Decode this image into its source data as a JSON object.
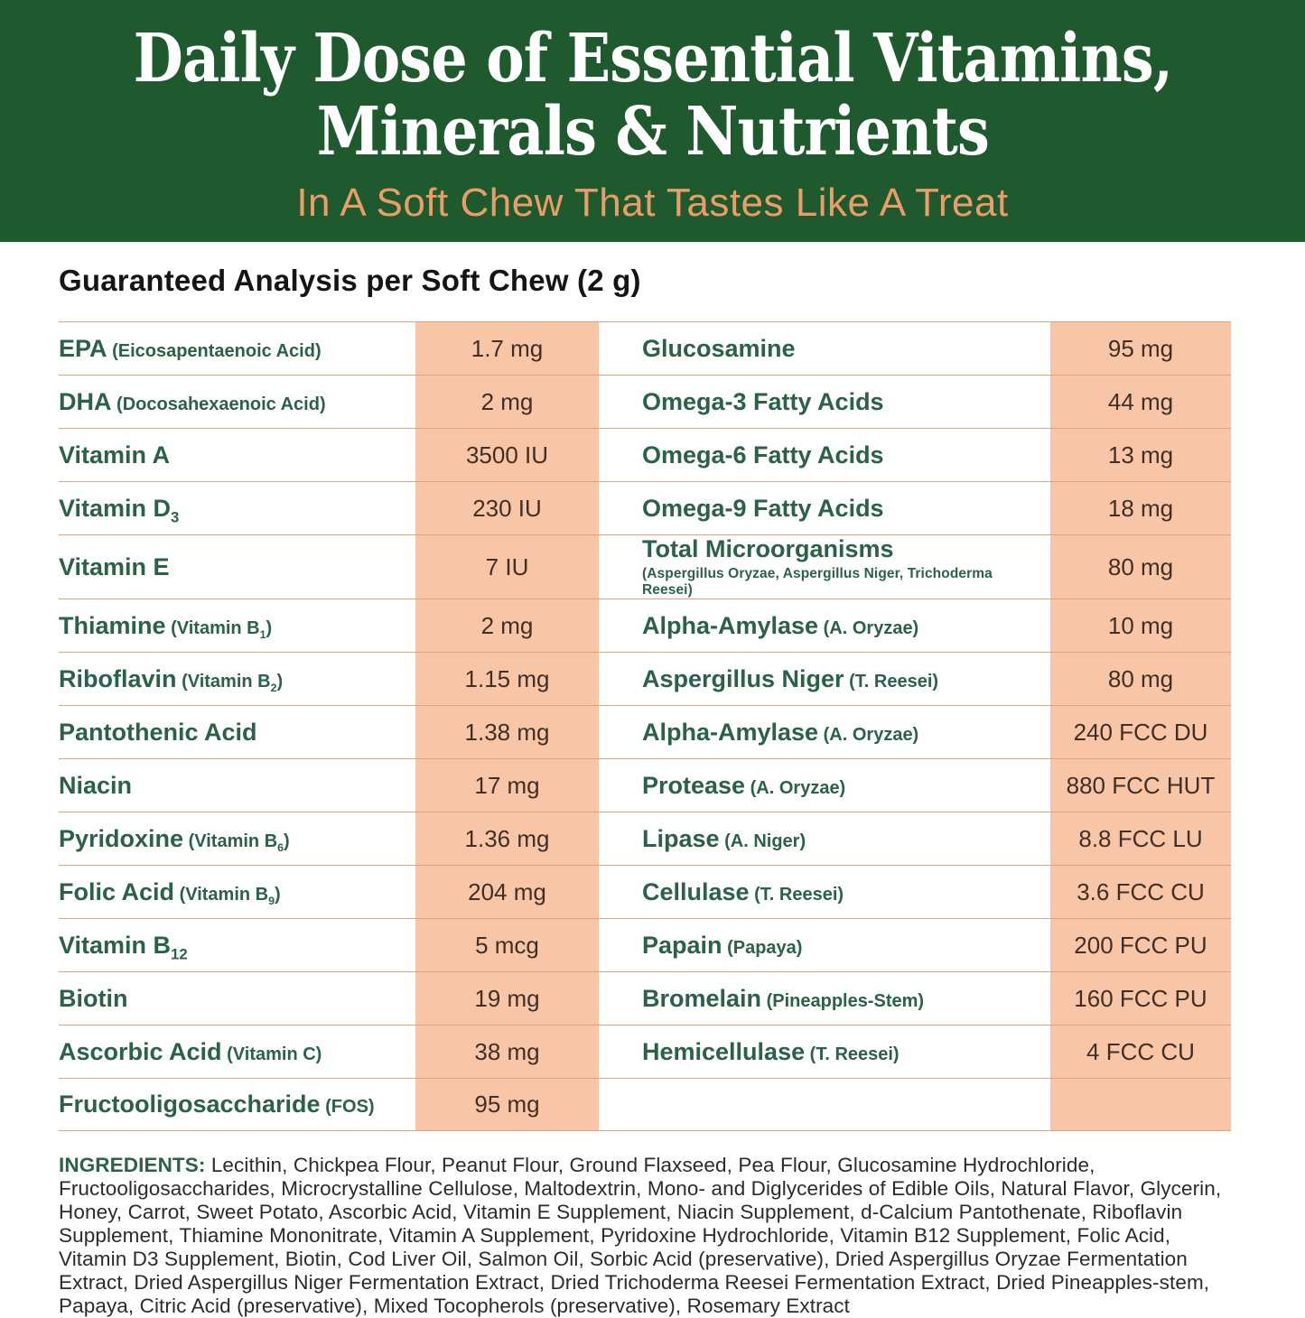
{
  "header": {
    "title_line1": "Daily Dose of Essential Vitamins,",
    "title_line2": "Minerals & Nutrients",
    "subtitle": "In A Soft Chew That Tastes Like A Treat"
  },
  "analysis": {
    "heading": "Guaranteed Analysis per Soft Chew (2 g)",
    "left_rows": [
      {
        "name": "EPA",
        "note": "(Eicosapentaenoic Acid)",
        "value": "1.7 mg"
      },
      {
        "name": "DHA",
        "note": "(Docosahexaenoic Acid)",
        "value": "2 mg"
      },
      {
        "name": "Vitamin A",
        "value": "3500 IU"
      },
      {
        "name": "Vitamin D_{3}",
        "value": "230 IU"
      },
      {
        "name": "Vitamin E",
        "value": "7 IU"
      },
      {
        "name": "Thiamine",
        "note": "(Vitamin B_{1})",
        "value": "2 mg"
      },
      {
        "name": "Riboflavin",
        "note": "(Vitamin B_{2})",
        "value": "1.15 mg"
      },
      {
        "name": "Pantothenic Acid",
        "value": "1.38 mg"
      },
      {
        "name": "Niacin",
        "value": "17 mg"
      },
      {
        "name": "Pyridoxine",
        "note": "(Vitamin B_{6})",
        "value": "1.36 mg"
      },
      {
        "name": "Folic Acid",
        "note": "(Vitamin B_{9})",
        "value": "204 mg"
      },
      {
        "name": "Vitamin B_{12}",
        "value": "5 mcg"
      },
      {
        "name": "Biotin",
        "value": "19 mg"
      },
      {
        "name": "Ascorbic Acid",
        "note": "(Vitamin C)",
        "value": "38 mg"
      },
      {
        "name": "Fructooligosaccharide",
        "note": "(FOS)",
        "value": "95 mg"
      }
    ],
    "right_rows": [
      {
        "name": "Glucosamine",
        "value": "95 mg"
      },
      {
        "name": "Omega-3 Fatty Acids",
        "value": "44 mg"
      },
      {
        "name": "Omega-6 Fatty Acids",
        "value": "13 mg"
      },
      {
        "name": "Omega-9 Fatty Acids",
        "value": "18 mg"
      },
      {
        "name": "Total Microorganisms",
        "note_block": "(Aspergillus Oryzae, Aspergillus Niger, Trichoderma Reesei)",
        "value": "80 mg"
      },
      {
        "name": "Alpha-Amylase",
        "note": "(A. Oryzae)",
        "value": "10 mg"
      },
      {
        "name": "Aspergillus Niger",
        "note": "(T. Reesei)",
        "value": "80 mg"
      },
      {
        "name": "Alpha-Amylase",
        "note": "(A. Oryzae)",
        "value": "240 FCC DU"
      },
      {
        "name": "Protease",
        "note": "(A. Oryzae)",
        "value": "880 FCC HUT"
      },
      {
        "name": "Lipase",
        "note": "(A. Niger)",
        "value": "8.8 FCC LU"
      },
      {
        "name": "Cellulase",
        "note": "(T. Reesei)",
        "value": "3.6 FCC CU"
      },
      {
        "name": "Papain",
        "note": "(Papaya)",
        "value": "200 FCC PU"
      },
      {
        "name": "Bromelain",
        "note": "(Pineapples-Stem)",
        "value": "160 FCC PU"
      },
      {
        "name": "Hemicellulase",
        "note": "(T. Reesei)",
        "value": "4 FCC CU"
      },
      {
        "name": "",
        "value": ""
      }
    ]
  },
  "ingredients": {
    "label": "INGREDIENTS:",
    "text": " Lecithin, Chickpea Flour, Peanut Flour, Ground Flaxseed, Pea Flour, Glucosamine Hydrochloride, Fructooligosaccharides, Microcrystalline Cellulose, Maltodextrin, Mono- and Diglycerides of Edible Oils, Natural Flavor, Glycerin, Honey, Carrot, Sweet Potato, Ascorbic Acid, Vitamin E Supplement, Niacin Supplement, d-Calcium Pantothenate, Riboflavin Supplement, Thiamine Mononitrate, Vitamin A Supplement, Pyridoxine Hydrochloride, Vitamin B12 Supplement, Folic Acid, Vitamin D3 Supplement, Biotin, Cod Liver Oil, Salmon Oil, Sorbic Acid (preservative), Dried Aspergillus Oryzae Fermentation Extract, Dried Aspergillus Niger Fermentation Extract, Dried Trichoderma Reesei Fermentation Extract, Dried Pineapples-stem, Papaya, Citric Acid (preservative), Mixed Tocopherols (preservative), Rosemary Extract"
  },
  "colors": {
    "banner_green": "#1F5A2F",
    "subtitle_orange": "#EB9D68",
    "label_green": "#2B6247",
    "value_peach": "#F8C5A7",
    "divider_line": "#DBA285",
    "value_text": "#402F27",
    "heading_text": "#151515",
    "ingredients_text": "#2B2B2B"
  }
}
